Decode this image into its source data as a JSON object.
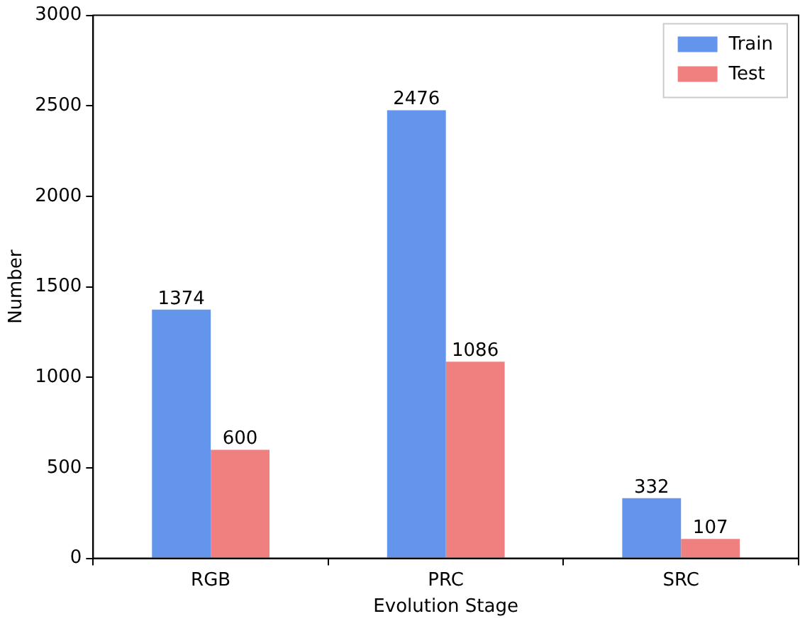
{
  "chart_data": {
    "type": "bar",
    "xlabel": "Evolution Stage",
    "ylabel": "Number",
    "categories": [
      "RGB",
      "PRC",
      "SRC"
    ],
    "series": [
      {
        "name": "Train",
        "color": "#6495ed",
        "values": [
          1374,
          2476,
          332
        ]
      },
      {
        "name": "Test",
        "color": "#f08080",
        "values": [
          600,
          1086,
          107
        ]
      }
    ],
    "ylim": [
      0,
      3000
    ],
    "yticks": [
      0,
      500,
      1000,
      1500,
      2000,
      2500,
      3000
    ],
    "grid": false,
    "legend": "top right",
    "data_labels": true
  }
}
